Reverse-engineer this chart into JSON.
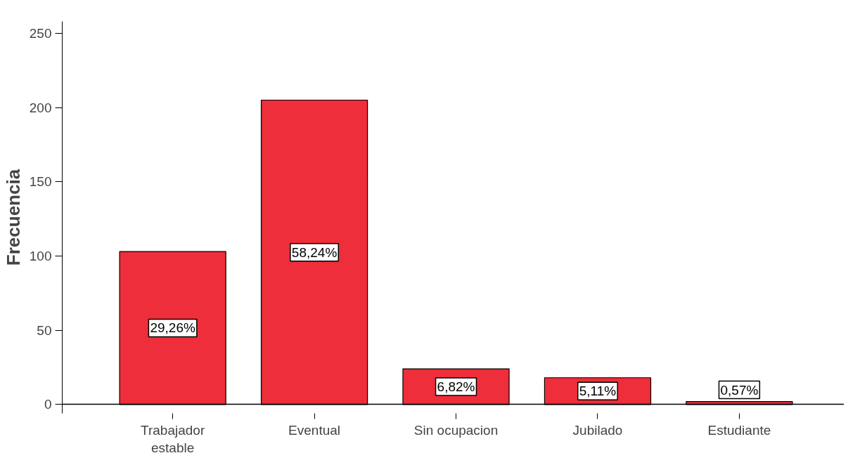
{
  "chart_data": {
    "type": "bar",
    "ylabel": "Frecuencia",
    "categories": [
      "Trabajador\nestable",
      "Eventual",
      "Sin ocupacion",
      "Jubilado",
      "Estudiante"
    ],
    "values": [
      103,
      205,
      24,
      18,
      2
    ],
    "annotations": [
      "29,26%",
      "58,24%",
      "6,82%",
      "5,11%",
      "0,57%"
    ],
    "color": "#ee2e3a",
    "ylim": [
      -6,
      258
    ],
    "yticks": [
      0,
      50,
      100,
      150,
      200,
      250
    ],
    "grid": false,
    "legend": false
  }
}
